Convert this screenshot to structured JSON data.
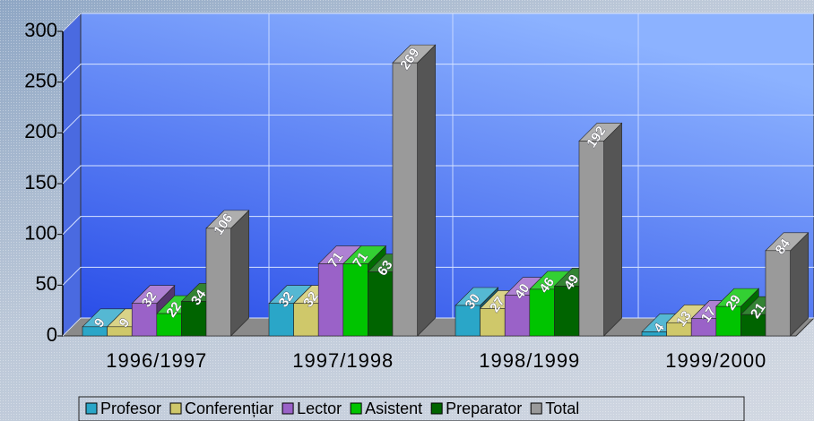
{
  "chart_data": {
    "type": "bar3d",
    "categories": [
      "1996/1997",
      "1997/1998",
      "1998/1999",
      "1999/2000"
    ],
    "series": [
      {
        "name": "Profesor",
        "color": "#2aa6c8",
        "values": [
          9,
          32,
          30,
          4
        ]
      },
      {
        "name": "Conferențiar",
        "color": "#cfc86a",
        "values": [
          9,
          32,
          27,
          13
        ]
      },
      {
        "name": "Lector",
        "color": "#9a62c8",
        "values": [
          32,
          71,
          40,
          17
        ]
      },
      {
        "name": "Asistent",
        "color": "#00c400",
        "values": [
          22,
          71,
          46,
          29
        ]
      },
      {
        "name": "Preparator",
        "color": "#006400",
        "values": [
          34,
          63,
          49,
          21
        ]
      },
      {
        "name": "Total",
        "color": "#9a9a9a",
        "values": [
          106,
          269,
          192,
          84
        ]
      }
    ],
    "ylim": [
      0,
      300
    ],
    "yticks": [
      0,
      50,
      100,
      150,
      200,
      250,
      300
    ],
    "grid": true,
    "legend": "bottom"
  }
}
